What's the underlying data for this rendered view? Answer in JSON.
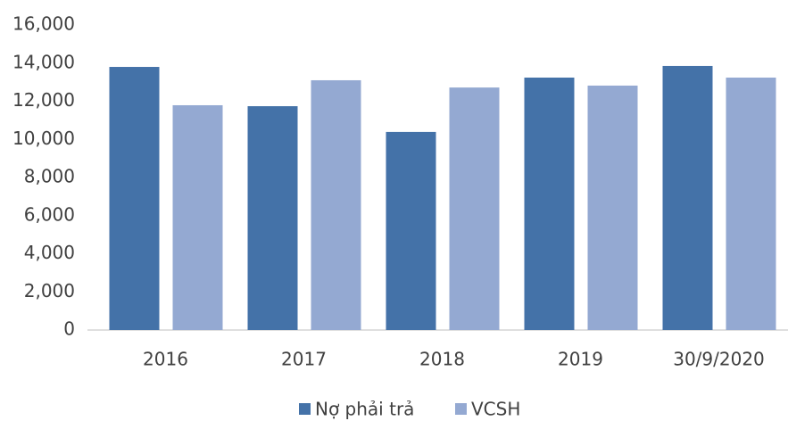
{
  "chart_data": {
    "type": "bar",
    "categories": [
      "2016",
      "2017",
      "2018",
      "2019",
      "30/9/2020"
    ],
    "series": [
      {
        "name": "Nợ phải trả",
        "color": "#4472a8",
        "values": [
          13800,
          11740,
          10390,
          13240,
          13850
        ]
      },
      {
        "name": "VCSH",
        "color": "#94a9d2",
        "values": [
          11790,
          13100,
          12720,
          12820,
          13240
        ]
      }
    ],
    "ylim": [
      0,
      16000
    ],
    "yticks": [
      0,
      {
        "value": 2000,
        "label": "2,000"
      },
      {
        "value": 4000,
        "label": "4,000"
      },
      {
        "value": 6000,
        "label": "6,000"
      },
      {
        "value": 8000,
        "label": "8,000"
      },
      {
        "value": 10000,
        "label": "10,000"
      },
      {
        "value": 12000,
        "label": "12,000"
      },
      {
        "value": 14000,
        "label": "14,000"
      },
      {
        "value": 16000,
        "label": "16,000"
      }
    ],
    "legend": "bottom"
  }
}
